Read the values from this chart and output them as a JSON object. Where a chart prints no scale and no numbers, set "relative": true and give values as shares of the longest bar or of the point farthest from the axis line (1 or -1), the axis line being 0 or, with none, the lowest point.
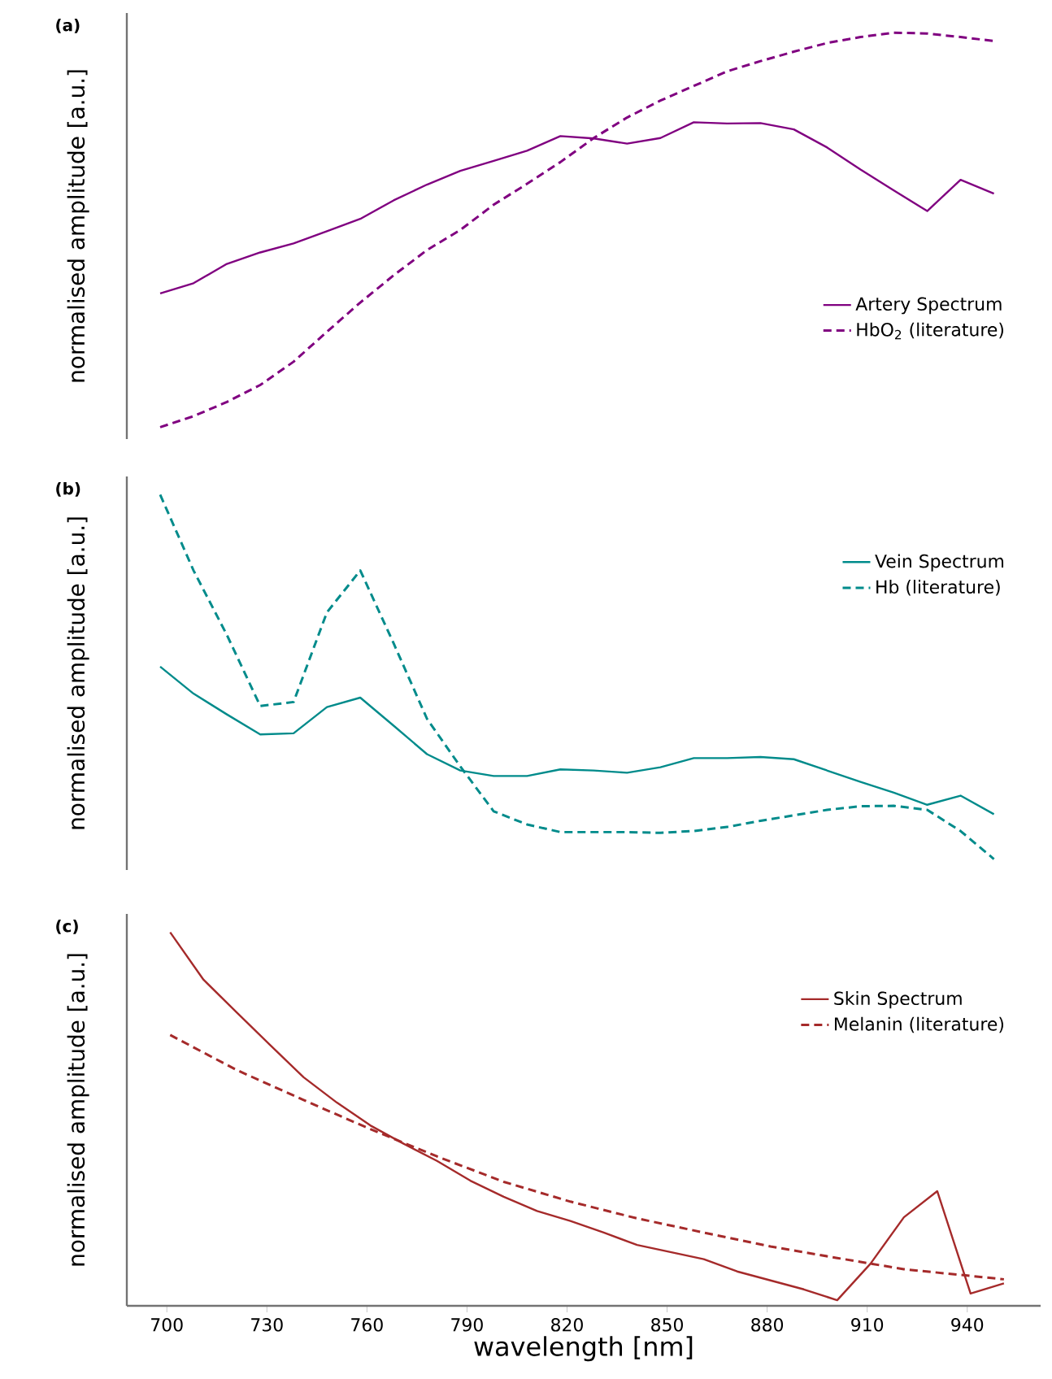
{
  "chart_data": [
    {
      "type": "line",
      "title": "(a)",
      "ylabel": "normalised amplitude [a.u.]",
      "relative": true,
      "tick_labels": false,
      "legend": "bottom right",
      "categories": [
        null,
        null,
        null,
        null,
        null,
        null,
        null,
        null,
        null,
        null,
        null,
        null,
        null,
        null,
        null,
        null,
        null,
        null,
        null,
        null,
        null,
        null,
        null,
        null,
        null,
        null
      ],
      "series": [
        {
          "name": "Artery Spectrum",
          "color": "#800080",
          "line_style": "solid",
          "values": [
            0.339,
            0.365,
            0.414,
            0.443,
            0.466,
            0.497,
            0.528,
            0.575,
            0.615,
            0.65,
            0.675,
            0.701,
            0.738,
            0.732,
            0.719,
            0.733,
            0.773,
            0.77,
            0.771,
            0.755,
            0.709,
            0.653,
            0.6,
            0.548,
            0.627,
            0.592
          ]
        },
        {
          "name": "HbO$_{2}$ (literature)",
          "color": "#800080",
          "line_style": "dashed",
          "values": [
            0,
            0.028,
            0.064,
            0.107,
            0.166,
            0.242,
            0.316,
            0.385,
            0.449,
            0.5,
            0.564,
            0.617,
            0.672,
            0.733,
            0.785,
            0.828,
            0.865,
            0.902,
            0.928,
            0.952,
            0.974,
            0.989,
            1.0,
            0.998,
            0.989,
            0.979
          ]
        }
      ]
    },
    {
      "type": "line",
      "title": "(b)",
      "ylabel": "normalised amplitude [a.u.]",
      "relative": true,
      "tick_labels": false,
      "legend": "top right",
      "categories": [
        null,
        null,
        null,
        null,
        null,
        null,
        null,
        null,
        null,
        null,
        null,
        null,
        null,
        null,
        null,
        null,
        null,
        null,
        null,
        null,
        null,
        null,
        null,
        null,
        null,
        null
      ],
      "series": [
        {
          "name": "Vein Spectrum",
          "color": "#008b8b",
          "line_style": "solid",
          "values": [
            0.528,
            0.454,
            0.397,
            0.342,
            0.345,
            0.417,
            0.443,
            0.366,
            0.288,
            0.243,
            0.228,
            0.228,
            0.246,
            0.243,
            0.237,
            0.252,
            0.277,
            0.277,
            0.28,
            0.274,
            0.243,
            0.212,
            0.182,
            0.149,
            0.174,
            0.123
          ]
        },
        {
          "name": "Hb (literature)",
          "color": "#008b8b",
          "line_style": "dashed",
          "values": [
            1.0,
            0.792,
            0.615,
            0.42,
            0.431,
            0.677,
            0.792,
            0.592,
            0.385,
            0.254,
            0.131,
            0.095,
            0.074,
            0.074,
            0.074,
            0.072,
            0.077,
            0.088,
            0.105,
            0.12,
            0.135,
            0.145,
            0.146,
            0.135,
            0.077,
            0.0
          ]
        }
      ]
    },
    {
      "type": "line",
      "title": "(c)",
      "xlabel": "wavelength [nm]",
      "ylabel": "normalised amplitude [a.u.]",
      "relative": true,
      "xlim": [
        688,
        962
      ],
      "xticks": [
        700,
        730,
        760,
        790,
        820,
        850,
        880,
        910,
        940
      ],
      "tick_labels": "x",
      "legend": "top right",
      "series": [
        {
          "name": "Skin Spectrum",
          "color": "#a52a2a",
          "line_style": "solid",
          "x": [
            701,
            711,
            721,
            731,
            741,
            751,
            761,
            771,
            781,
            791,
            801,
            811,
            821,
            831,
            841,
            851,
            861,
            871,
            881,
            891,
            901,
            911,
            921,
            931,
            941,
            951
          ],
          "values": [
            1.0,
            0.873,
            0.785,
            0.698,
            0.612,
            0.544,
            0.483,
            0.434,
            0.388,
            0.335,
            0.292,
            0.254,
            0.227,
            0.196,
            0.163,
            0.144,
            0.125,
            0.092,
            0.068,
            0.044,
            0.015,
            0.113,
            0.237,
            0.307,
            0.033,
            0.06
          ]
        },
        {
          "name": "Melanin (literature)",
          "color": "#a52a2a",
          "line_style": "dashed",
          "x": [
            701,
            721,
            741,
            761,
            781,
            801,
            821,
            841,
            861,
            881,
            901,
            921,
            941,
            951
          ],
          "values": [
            0.725,
            0.631,
            0.551,
            0.473,
            0.4,
            0.332,
            0.279,
            0.234,
            0.196,
            0.159,
            0.128,
            0.098,
            0.08,
            0.071
          ]
        }
      ]
    }
  ]
}
